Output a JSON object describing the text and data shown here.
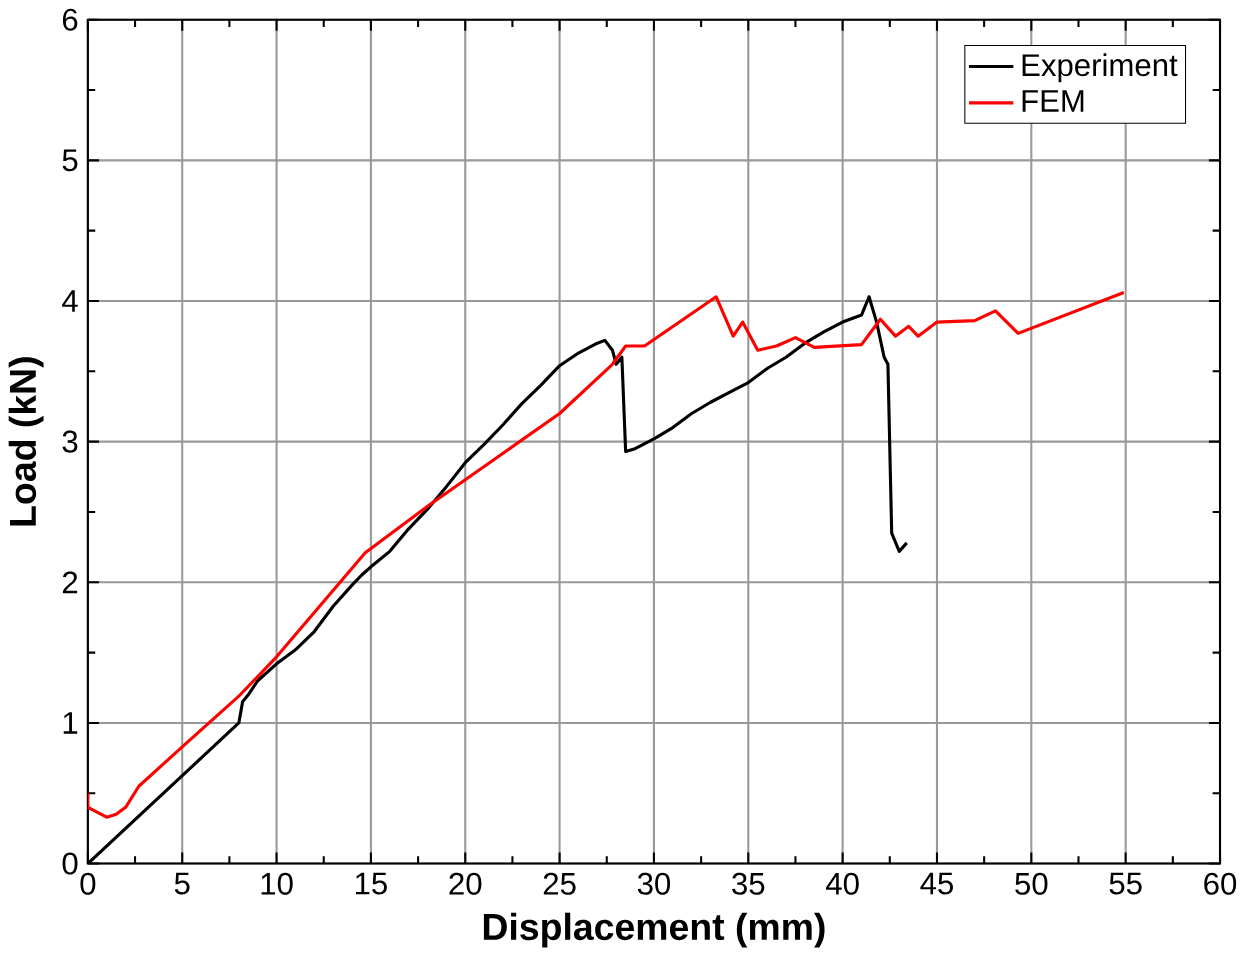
{
  "chart_data": {
    "type": "line",
    "xlabel": "Displacement (mm)",
    "ylabel": "Load (kN)",
    "xlim": [
      0,
      60
    ],
    "ylim": [
      0,
      6
    ],
    "xticks": [
      0,
      5,
      10,
      15,
      20,
      25,
      30,
      35,
      40,
      45,
      50,
      55,
      60
    ],
    "yticks": [
      0,
      1,
      2,
      3,
      4,
      5,
      6
    ],
    "grid": true,
    "legend": "top right",
    "marker": "none",
    "line_style": "solid",
    "series": [
      {
        "name": "Experiment",
        "color": "#000000",
        "x": [
          0,
          8,
          8.2,
          8.5,
          9,
          10,
          11,
          12,
          13,
          14,
          14.5,
          15,
          16,
          17,
          18,
          19,
          20,
          21,
          22,
          23,
          24,
          25,
          26,
          27,
          27.4,
          27.8,
          28,
          28.3,
          28.5,
          29,
          30,
          31,
          32,
          33,
          34,
          35,
          36,
          37,
          38,
          39,
          40,
          41,
          41.4,
          41.8,
          42.2,
          42.4,
          42.6,
          43,
          43.4
        ],
        "values": [
          0,
          1.0,
          1.15,
          1.2,
          1.3,
          1.42,
          1.52,
          1.65,
          1.83,
          1.98,
          2.05,
          2.11,
          2.22,
          2.38,
          2.52,
          2.68,
          2.85,
          2.98,
          3.12,
          3.27,
          3.4,
          3.54,
          3.63,
          3.7,
          3.72,
          3.65,
          3.55,
          3.6,
          2.93,
          2.95,
          3.02,
          3.1,
          3.2,
          3.28,
          3.35,
          3.42,
          3.52,
          3.6,
          3.7,
          3.78,
          3.85,
          3.9,
          4.03,
          3.85,
          3.6,
          3.55,
          2.35,
          2.22,
          2.28
        ]
      },
      {
        "name": "FEM",
        "color": "#ff0000",
        "x": [
          0,
          0,
          1,
          1.5,
          2,
          2.7,
          5,
          8,
          10,
          14.7,
          18,
          25,
          27.8,
          28.5,
          29.5,
          33.3,
          34.2,
          34.7,
          35.5,
          36.5,
          37.5,
          38.5,
          41,
          42,
          42.8,
          43.5,
          44,
          45,
          47,
          48.1,
          49.3,
          54.9
        ],
        "values": [
          0.5,
          0.4,
          0.33,
          0.35,
          0.4,
          0.55,
          0.83,
          1.19,
          1.47,
          2.21,
          2.54,
          3.2,
          3.55,
          3.68,
          3.68,
          4.03,
          3.75,
          3.85,
          3.65,
          3.68,
          3.74,
          3.67,
          3.69,
          3.87,
          3.75,
          3.82,
          3.75,
          3.85,
          3.86,
          3.93,
          3.77,
          4.06
        ]
      }
    ]
  }
}
